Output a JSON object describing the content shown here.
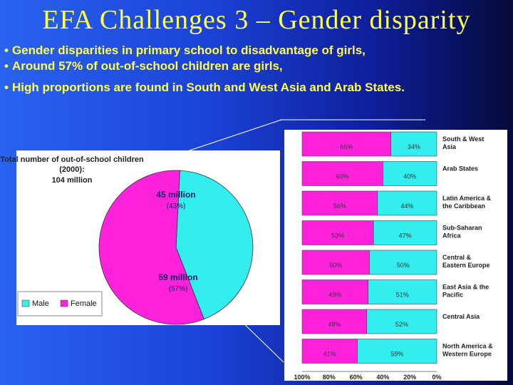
{
  "slide": {
    "title": "EFA Challenges 3 – Gender disparity",
    "bullets": [
      "Gender disparities in primary school to disadvantage of girls,",
      "Around 57% of out-of-school children are girls,",
      "High proportions are found in South and West Asia and Arab States."
    ],
    "colors": {
      "male": "#33eeee",
      "female": "#ff22dd",
      "title": "#ffff4d"
    }
  },
  "chart_data": [
    {
      "type": "pie",
      "title": "Total number of out-of-school children (2000):",
      "subtitle": "104 million",
      "slices": [
        {
          "name": "Male",
          "value": 45,
          "value_label": "45 million",
          "percent_label": "(43%)"
        },
        {
          "name": "Female",
          "value": 59,
          "value_label": "59 million",
          "percent_label": "(57%)"
        }
      ],
      "legend": [
        "Male",
        "Female"
      ],
      "legend_position": "bottom-left"
    },
    {
      "type": "bar",
      "orientation": "horizontal",
      "stacked": true,
      "categories": [
        "South & West Asia",
        "Arab States",
        "Latin America & the Caribbean",
        "Sub-Saharan Africa",
        "Central & Eastern Europe",
        "East Asia & the Pacific",
        "Central Asia",
        "North America & Western Europe"
      ],
      "series": [
        {
          "name": "Female",
          "values": [
            66,
            60,
            56,
            53,
            50,
            49,
            48,
            41
          ]
        },
        {
          "name": "Male",
          "values": [
            34,
            40,
            44,
            47,
            50,
            51,
            52,
            59
          ]
        }
      ],
      "xticks": [
        "100%",
        "80%",
        "60%",
        "40%",
        "20%",
        "0%"
      ],
      "xlim": [
        0,
        100
      ],
      "x_reversed": true
    }
  ]
}
